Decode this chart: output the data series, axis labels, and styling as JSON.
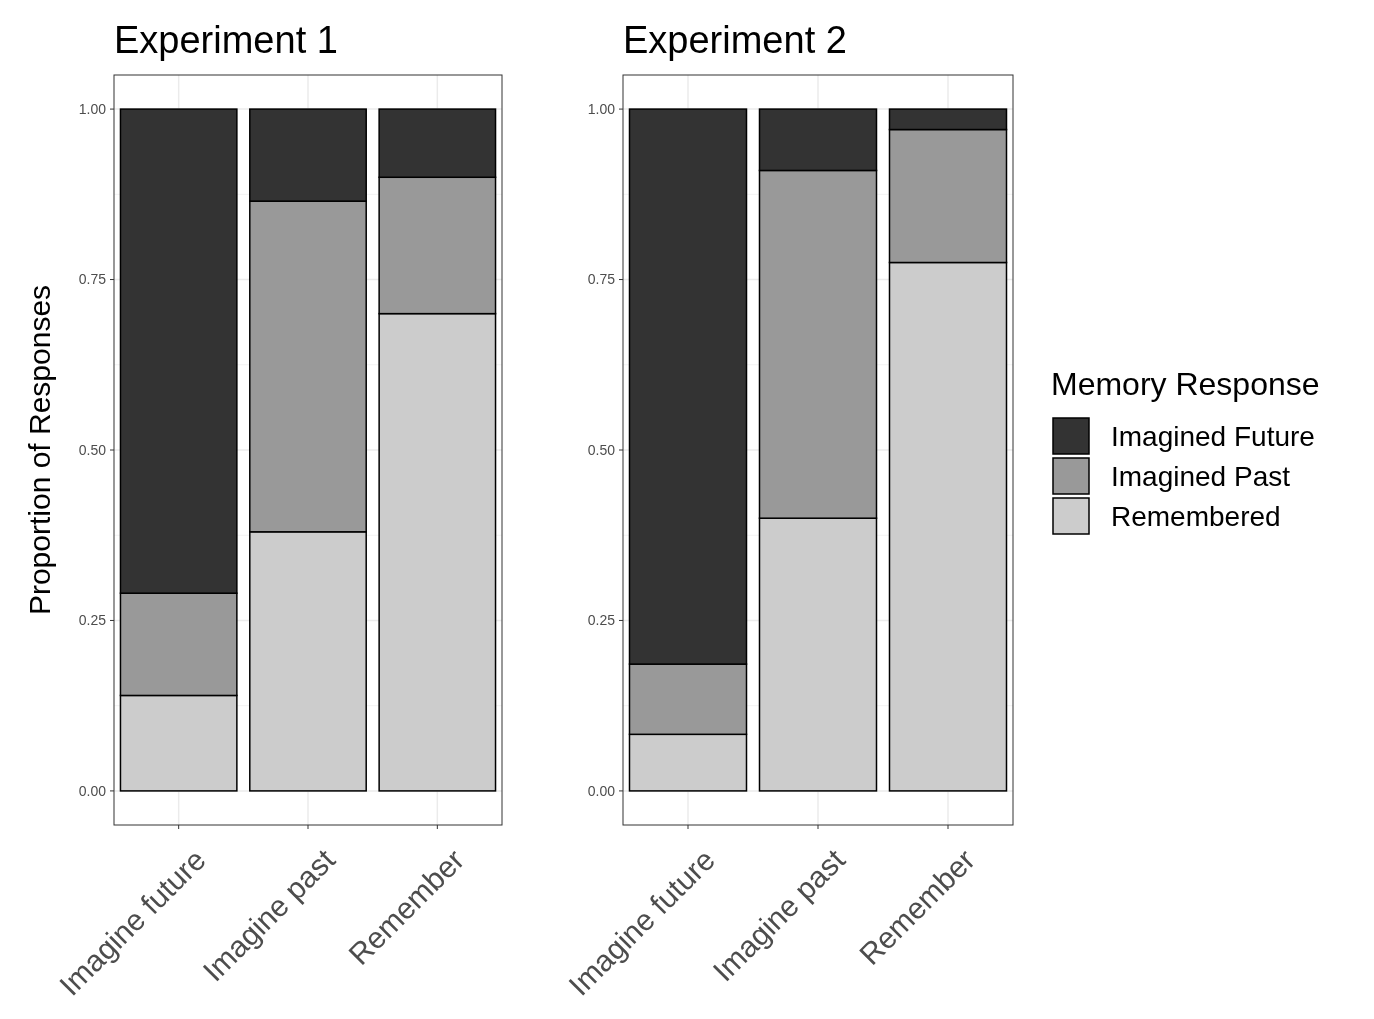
{
  "chart_data": [
    {
      "type": "bar",
      "title": "Experiment 1",
      "ylabel": "Proportion of Responses",
      "categories": [
        "Imagine future",
        "Imagine past",
        "Remember"
      ],
      "stacked": true,
      "ylim": [
        -0.05,
        1.05
      ],
      "yticks": [
        {
          "value": 0,
          "label": "0.00"
        },
        {
          "value": 0.25,
          "label": "0.25"
        },
        {
          "value": 0.5,
          "label": "0.50"
        },
        {
          "value": 0.75,
          "label": "0.75"
        },
        {
          "value": 1,
          "label": "1.00"
        }
      ],
      "grid": true,
      "legend": false,
      "series": [
        {
          "color": "#cccccc",
          "values": [
            0.14,
            0.38,
            0.7
          ]
        },
        {
          "color": "#999999",
          "values": [
            0.15,
            0.485,
            0.2
          ]
        },
        {
          "color": "#333333",
          "values": [
            0.71,
            0.135,
            0.1
          ]
        }
      ]
    },
    {
      "type": "bar",
      "title": "Experiment 2",
      "categories": [
        "Imagine future",
        "Imagine past",
        "Remember"
      ],
      "stacked": true,
      "ylim": [
        -0.05,
        1.05
      ],
      "yticks": [
        {
          "value": 0,
          "label": "0.00"
        },
        {
          "value": 0.25,
          "label": "0.25"
        },
        {
          "value": 0.5,
          "label": "0.50"
        },
        {
          "value": 0.75,
          "label": "0.75"
        },
        {
          "value": 1,
          "label": "1.00"
        }
      ],
      "grid": true,
      "legend": "right",
      "legend_title": "Memory Response",
      "series": [
        {
          "name": "Remembered",
          "color": "#cccccc",
          "values": [
            0.083,
            0.4,
            0.775
          ]
        },
        {
          "name": "Imagined Past",
          "color": "#999999",
          "values": [
            0.103,
            0.51,
            0.195
          ]
        },
        {
          "name": "Imagined Future",
          "color": "#333333",
          "values": [
            0.814,
            0.09,
            0.03
          ]
        }
      ]
    }
  ]
}
